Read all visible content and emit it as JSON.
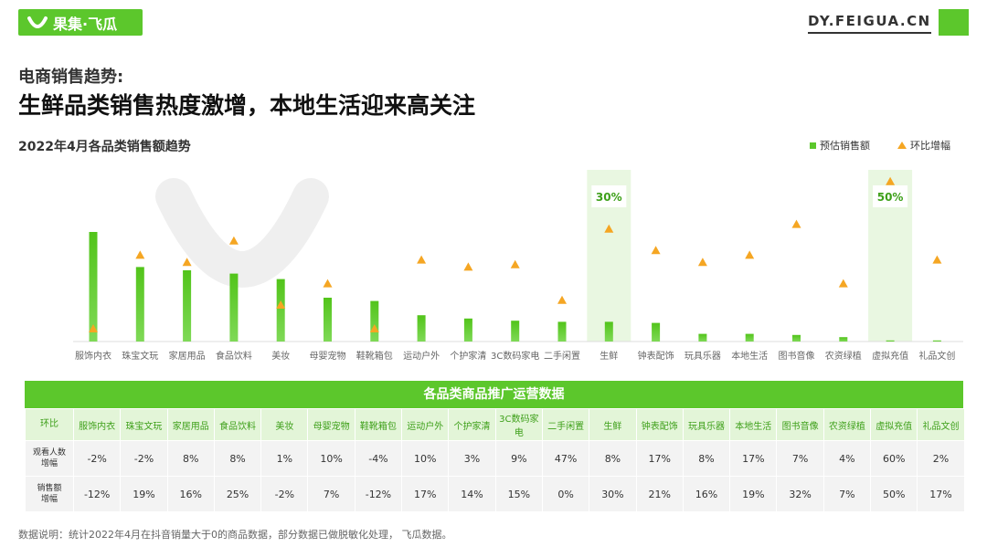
{
  "brand": {
    "logo_text": "果集·飞瓜",
    "url": "DY.FEIGUA.CN",
    "accent": "#5cc72c",
    "triangle_color": "#f5a623"
  },
  "subtitle": "电商销售趋势:",
  "headline": "生鲜品类销售热度激增，本地生活迎来高关注",
  "chart_title": "2022年4月各品类销售额趋势",
  "legend": {
    "bar": "预估销售额",
    "triangle": "环比增幅"
  },
  "chart_data": {
    "type": "bar",
    "categories": [
      "服饰内衣",
      "珠宝文玩",
      "家居用品",
      "食品饮料",
      "美妆",
      "母婴宠物",
      "鞋靴箱包",
      "运动户外",
      "个护家清",
      "3C数码家电",
      "二手闲置",
      "生鲜",
      "钟表配饰",
      "玩具乐器",
      "本地生活",
      "图书音像",
      "农资绿植",
      "虚拟充值",
      "礼品文创"
    ],
    "series": [
      {
        "name": "预估销售额",
        "type": "bar",
        "values": [
          100,
          68,
          65,
          62,
          57,
          40,
          37,
          24,
          21,
          19,
          18,
          18,
          17,
          7,
          7,
          6,
          4,
          1,
          1
        ]
      },
      {
        "name": "环比增幅",
        "type": "scatter",
        "marker": "triangle",
        "values": [
          -12,
          19,
          16,
          25,
          -2,
          7,
          -12,
          17,
          14,
          15,
          0,
          30,
          21,
          16,
          19,
          32,
          7,
          50,
          17
        ]
      }
    ],
    "highlights": [
      {
        "category": "生鲜",
        "label": "30%"
      },
      {
        "category": "虚拟充值",
        "label": "50%"
      }
    ]
  },
  "table": {
    "title": "各品类商品推广运营数据",
    "header_label": "环比",
    "rows": [
      {
        "label_line1": "观看人数",
        "label_line2": "增幅",
        "values": [
          "-2%",
          "-2%",
          "8%",
          "8%",
          "1%",
          "10%",
          "-4%",
          "10%",
          "3%",
          "9%",
          "47%",
          "8%",
          "17%",
          "8%",
          "17%",
          "7%",
          "4%",
          "60%",
          "2%"
        ]
      },
      {
        "label_line1": "销售额",
        "label_line2": "增幅",
        "values": [
          "-12%",
          "19%",
          "16%",
          "25%",
          "-2%",
          "7%",
          "-12%",
          "17%",
          "14%",
          "15%",
          "0%",
          "30%",
          "21%",
          "16%",
          "19%",
          "32%",
          "7%",
          "50%",
          "17%"
        ]
      }
    ]
  },
  "footnote": "数据说明：统计2022年4月在抖音销量大于0的商品数据，部分数据已做脱敏化处理， 飞瓜数据。"
}
